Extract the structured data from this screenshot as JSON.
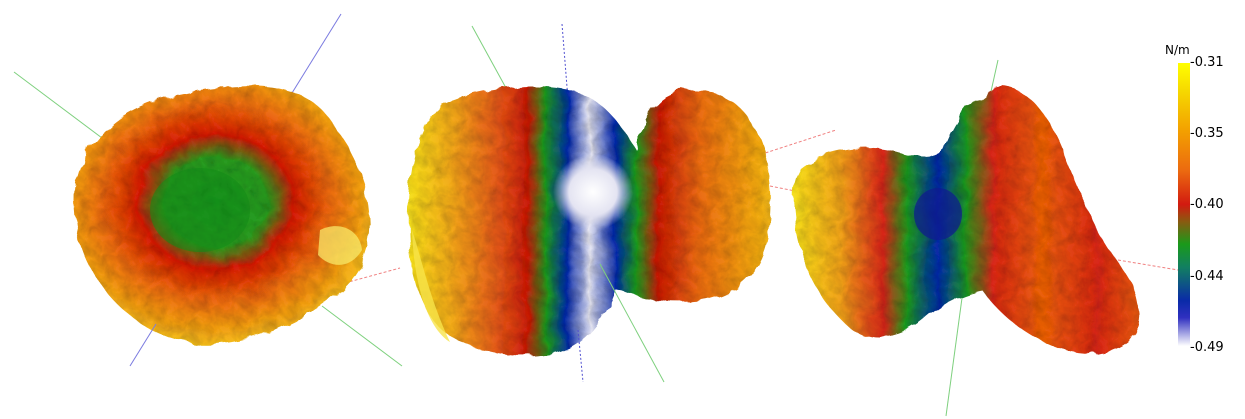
{
  "figure": {
    "views": [
      {
        "name": "view-left"
      },
      {
        "name": "view-middle"
      },
      {
        "name": "view-right"
      }
    ]
  },
  "colorbar": {
    "unit": "N/m",
    "ticks": [
      "-0.31",
      "-0.35",
      "-0.40",
      "-0.44",
      "-0.49"
    ],
    "colors": [
      "#ffff00",
      "#f39000",
      "#d21a10",
      "#1a9a1a",
      "#0a1aa8",
      "#ffffff"
    ]
  }
}
